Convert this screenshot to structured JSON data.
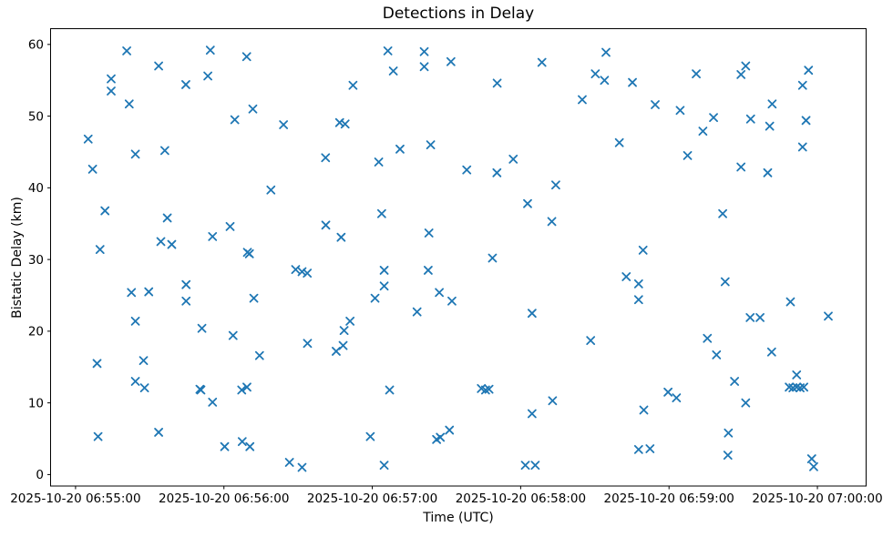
{
  "chart_data": {
    "type": "scatter",
    "title": "Detections in Delay",
    "xlabel": "Time (UTC)",
    "ylabel": "Bistatic Delay (km)",
    "marker": "x",
    "marker_color": "#1f77b4",
    "grid": false,
    "legend": null,
    "x_unit": "seconds after 2025-10-20 06:55:00 UTC",
    "xlim": [
      -10.1,
      319.7
    ],
    "ylim": [
      -1.6,
      62.2
    ],
    "xticks": [
      {
        "value": 0,
        "label": "2025-10-20 06:55:00"
      },
      {
        "value": 60,
        "label": "2025-10-20 06:56:00"
      },
      {
        "value": 120,
        "label": "2025-10-20 06:57:00"
      },
      {
        "value": 180,
        "label": "2025-10-20 06:58:00"
      },
      {
        "value": 240,
        "label": "2025-10-20 06:59:00"
      },
      {
        "value": 300,
        "label": "2025-10-20 07:00:00"
      }
    ],
    "yticks": [
      0,
      10,
      20,
      30,
      40,
      50,
      60
    ],
    "points": [
      [
        20.7,
        59.1
      ],
      [
        54.5,
        59.2
      ],
      [
        69.2,
        58.3
      ],
      [
        33.6,
        57.0
      ],
      [
        14.4,
        55.2
      ],
      [
        14.4,
        53.5
      ],
      [
        44.6,
        54.4
      ],
      [
        53.5,
        55.6
      ],
      [
        21.7,
        51.7
      ],
      [
        71.7,
        51.0
      ],
      [
        64.4,
        49.5
      ],
      [
        5.1,
        46.8
      ],
      [
        24.2,
        44.7
      ],
      [
        36.1,
        45.2
      ],
      [
        6.9,
        42.6
      ],
      [
        11.9,
        36.8
      ],
      [
        37.1,
        35.8
      ],
      [
        62.5,
        34.6
      ],
      [
        55.4,
        33.2
      ],
      [
        34.5,
        32.5
      ],
      [
        38.9,
        32.1
      ],
      [
        9.9,
        31.4
      ],
      [
        69.5,
        31.0
      ],
      [
        70.3,
        30.8
      ],
      [
        126.3,
        59.1
      ],
      [
        141.0,
        59.0
      ],
      [
        151.8,
        57.6
      ],
      [
        141.0,
        56.9
      ],
      [
        128.5,
        56.3
      ],
      [
        112.2,
        54.3
      ],
      [
        84.1,
        48.8
      ],
      [
        106.8,
        49.1
      ],
      [
        109.0,
        48.9
      ],
      [
        101.1,
        44.2
      ],
      [
        122.6,
        43.6
      ],
      [
        131.2,
        45.4
      ],
      [
        143.6,
        46.0
      ],
      [
        79.0,
        39.7
      ],
      [
        123.8,
        36.4
      ],
      [
        101.2,
        34.8
      ],
      [
        107.4,
        33.1
      ],
      [
        142.9,
        33.7
      ],
      [
        214.5,
        58.9
      ],
      [
        188.6,
        57.5
      ],
      [
        210.2,
        55.9
      ],
      [
        213.9,
        55.0
      ],
      [
        225.2,
        54.7
      ],
      [
        170.5,
        54.6
      ],
      [
        204.9,
        52.3
      ],
      [
        234.4,
        51.6
      ],
      [
        219.9,
        46.3
      ],
      [
        177.0,
        44.0
      ],
      [
        158.2,
        42.5
      ],
      [
        170.4,
        42.1
      ],
      [
        194.2,
        40.4
      ],
      [
        182.8,
        37.8
      ],
      [
        192.6,
        35.3
      ],
      [
        229.5,
        31.3
      ],
      [
        168.6,
        30.2
      ],
      [
        271.0,
        57.0
      ],
      [
        251.0,
        55.9
      ],
      [
        269.1,
        55.8
      ],
      [
        296.4,
        56.4
      ],
      [
        294.0,
        54.3
      ],
      [
        281.7,
        51.7
      ],
      [
        244.5,
        50.8
      ],
      [
        258.0,
        49.8
      ],
      [
        273.0,
        49.6
      ],
      [
        280.7,
        48.6
      ],
      [
        253.7,
        47.9
      ],
      [
        295.4,
        49.4
      ],
      [
        294.0,
        45.7
      ],
      [
        247.5,
        44.5
      ],
      [
        269.1,
        42.9
      ],
      [
        279.9,
        42.1
      ],
      [
        261.7,
        36.4
      ],
      [
        22.6,
        25.4
      ],
      [
        29.6,
        25.5
      ],
      [
        44.7,
        26.5
      ],
      [
        44.7,
        24.2
      ],
      [
        72.1,
        24.6
      ],
      [
        24.2,
        21.4
      ],
      [
        51.1,
        20.4
      ],
      [
        63.7,
        19.4
      ],
      [
        8.7,
        15.5
      ],
      [
        27.5,
        15.9
      ],
      [
        24.2,
        13.0
      ],
      [
        27.9,
        12.1
      ],
      [
        50.3,
        11.9
      ],
      [
        50.7,
        11.8
      ],
      [
        67.2,
        11.8
      ],
      [
        69.3,
        12.2
      ],
      [
        55.4,
        10.1
      ],
      [
        33.6,
        5.9
      ],
      [
        9.1,
        5.3
      ],
      [
        60.3,
        3.9
      ],
      [
        67.4,
        4.6
      ],
      [
        70.5,
        3.9
      ],
      [
        89.0,
        28.6
      ],
      [
        91.6,
        28.3
      ],
      [
        93.7,
        28.1
      ],
      [
        124.8,
        28.5
      ],
      [
        142.6,
        28.5
      ],
      [
        124.8,
        26.3
      ],
      [
        121.1,
        24.6
      ],
      [
        147.1,
        25.4
      ],
      [
        152.2,
        24.2
      ],
      [
        138.1,
        22.7
      ],
      [
        111.0,
        21.4
      ],
      [
        108.6,
        20.1
      ],
      [
        93.8,
        18.3
      ],
      [
        108.2,
        18.0
      ],
      [
        105.4,
        17.2
      ],
      [
        74.4,
        16.6
      ],
      [
        127.0,
        11.8
      ],
      [
        119.2,
        5.3
      ],
      [
        146.0,
        4.9
      ],
      [
        147.5,
        5.2
      ],
      [
        151.2,
        6.2
      ],
      [
        86.5,
        1.7
      ],
      [
        91.6,
        1.0
      ],
      [
        124.8,
        1.3
      ],
      [
        222.7,
        27.6
      ],
      [
        227.7,
        26.6
      ],
      [
        227.7,
        24.4
      ],
      [
        184.6,
        22.5
      ],
      [
        208.3,
        18.7
      ],
      [
        164.1,
        12.0
      ],
      [
        165.8,
        11.8
      ],
      [
        167.2,
        11.9
      ],
      [
        192.9,
        10.3
      ],
      [
        184.6,
        8.5
      ],
      [
        229.8,
        9.0
      ],
      [
        227.7,
        3.5
      ],
      [
        232.3,
        3.6
      ],
      [
        181.9,
        1.3
      ],
      [
        185.9,
        1.3
      ],
      [
        262.7,
        26.9
      ],
      [
        289.1,
        24.1
      ],
      [
        272.8,
        21.9
      ],
      [
        276.8,
        21.9
      ],
      [
        304.4,
        22.1
      ],
      [
        255.5,
        19.0
      ],
      [
        259.2,
        16.7
      ],
      [
        281.5,
        17.1
      ],
      [
        291.6,
        13.9
      ],
      [
        266.5,
        13.0
      ],
      [
        288.6,
        12.2
      ],
      [
        290.1,
        12.1
      ],
      [
        291.6,
        12.2
      ],
      [
        293.0,
        12.1
      ],
      [
        294.5,
        12.2
      ],
      [
        239.6,
        11.5
      ],
      [
        243.0,
        10.7
      ],
      [
        271.0,
        10.0
      ],
      [
        264.0,
        5.8
      ],
      [
        263.8,
        2.7
      ],
      [
        297.7,
        2.2
      ],
      [
        298.5,
        1.1
      ]
    ]
  }
}
